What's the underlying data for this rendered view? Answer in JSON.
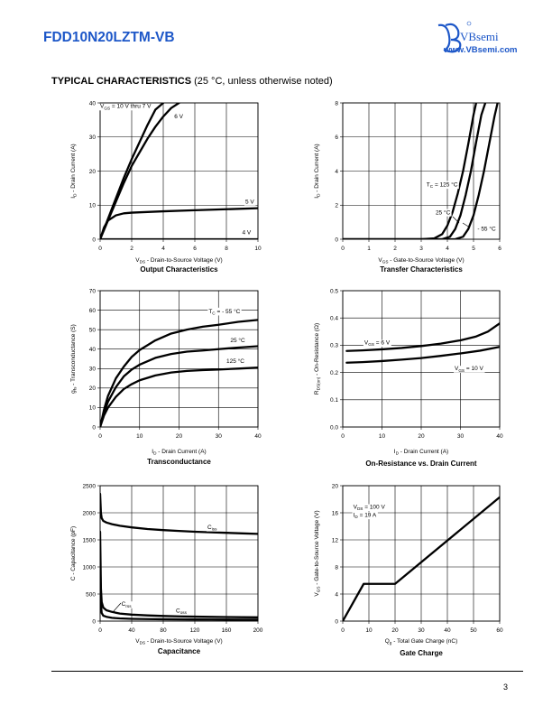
{
  "header": {
    "part_number": "FDD10N20LZTM-VB",
    "brand": "VBsemi",
    "website": "www.VBsemi.com"
  },
  "section": {
    "title": "TYPICAL CHARACTERISTICS",
    "note": "(25 °C, unless otherwise noted)"
  },
  "page_number": "3",
  "chart_data": [
    {
      "type": "line",
      "caption": "Output Characteristics",
      "xlabel": "V_DS - Drain-to-Source Voltage (V)",
      "ylabel": "I_D - Drain Current (A)",
      "xlim": [
        0,
        10
      ],
      "ylim": [
        0,
        40
      ],
      "xticks": [
        0,
        2,
        4,
        6,
        8,
        10
      ],
      "yticks": [
        0,
        10,
        20,
        30,
        40
      ],
      "grid": true,
      "annotations": [
        {
          "text": "V_GS = 10 V thru 7 V",
          "x": 0,
          "y": 38.5,
          "anchor": "start"
        },
        {
          "text": "6 V",
          "x": 4.7,
          "y": 35.5,
          "anchor": "start"
        },
        {
          "text": "5 V",
          "x": 9.2,
          "y": 10.5,
          "anchor": "start"
        },
        {
          "text": "4 V",
          "x": 9.0,
          "y": 1.5,
          "anchor": "start"
        }
      ],
      "series": [
        {
          "x": [
            0,
            0.5,
            1,
            1.5,
            2,
            2.5,
            3,
            3.5,
            4
          ],
          "y": [
            0,
            6,
            12,
            18,
            23.5,
            28.5,
            33.5,
            38,
            40
          ]
        },
        {
          "x": [
            0,
            0.5,
            1,
            1.5,
            2,
            2.5,
            3,
            3.5,
            4,
            4.5,
            5
          ],
          "y": [
            0,
            5.5,
            11,
            16.5,
            21.5,
            25.5,
            29.5,
            33,
            36,
            38.5,
            40
          ]
        },
        {
          "x": [
            0,
            0.25,
            0.5,
            1,
            1.5,
            2,
            3,
            4,
            6,
            8,
            10
          ],
          "y": [
            0,
            3.5,
            5.5,
            7.0,
            7.6,
            7.8,
            8.0,
            8.2,
            8.5,
            8.8,
            9.1
          ]
        },
        {
          "x": [
            0,
            2,
            4,
            6,
            8,
            10
          ],
          "y": [
            0,
            0,
            0,
            0,
            0,
            0
          ]
        }
      ]
    },
    {
      "type": "line",
      "caption": "Transfer Characteristics",
      "xlabel": "V_GS - Gate-to-Source Voltage (V)",
      "ylabel": "I_D - Drain Current (A)",
      "xlim": [
        0,
        6
      ],
      "ylim": [
        0,
        8
      ],
      "xticks": [
        0,
        1,
        2,
        3,
        4,
        5,
        6
      ],
      "yticks": [
        0,
        2,
        4,
        6,
        8
      ],
      "grid": true,
      "annotations": [
        {
          "text": "T_C = 125 °C",
          "x": 3.2,
          "y": 3.1,
          "anchor": "start"
        },
        {
          "text": "25 °C",
          "x": 3.55,
          "y": 1.45,
          "anchor": "start"
        },
        {
          "text": "- 55 °C",
          "x": 5.15,
          "y": 0.5,
          "anchor": "start"
        }
      ],
      "series": [
        {
          "name": "125 °C",
          "x": [
            0,
            3,
            3.5,
            3.8,
            4.0,
            4.2,
            4.4,
            4.6,
            4.8,
            5.0,
            5.1
          ],
          "y": [
            0,
            0,
            0.05,
            0.3,
            0.8,
            1.6,
            2.7,
            4.0,
            5.6,
            7.3,
            8
          ]
        },
        {
          "name": "25 °C",
          "x": [
            0,
            3.8,
            4.1,
            4.3,
            4.5,
            4.7,
            4.9,
            5.1,
            5.3,
            5.45
          ],
          "y": [
            0,
            0,
            0.15,
            0.6,
            1.4,
            2.6,
            4.0,
            5.7,
            7.3,
            8
          ]
        },
        {
          "name": "- 55 °C",
          "x": [
            0,
            4.3,
            4.6,
            4.8,
            5.0,
            5.2,
            5.4,
            5.6,
            5.8,
            5.92
          ],
          "y": [
            0,
            0,
            0.15,
            0.6,
            1.4,
            2.6,
            4.0,
            5.6,
            7.2,
            8
          ]
        }
      ]
    },
    {
      "type": "line",
      "caption": "Transconductance",
      "xlabel": "I_D - Drain Current (A)",
      "ylabel": "g_fs - Transconductance (S)",
      "xlim": [
        0,
        40
      ],
      "ylim": [
        0,
        70
      ],
      "xticks": [
        0,
        10,
        20,
        30,
        40
      ],
      "yticks": [
        0,
        10,
        20,
        30,
        40,
        50,
        60,
        70
      ],
      "grid": true,
      "annotations": [
        {
          "text": "T_C = - 55 °C",
          "x": 27.5,
          "y": 58.5,
          "anchor": "start"
        },
        {
          "text": "25 °C",
          "x": 33,
          "y": 43.5,
          "anchor": "start"
        },
        {
          "text": "125 °C",
          "x": 32,
          "y": 33,
          "anchor": "start"
        }
      ],
      "series": [
        {
          "name": "- 55 °C",
          "x": [
            0,
            1,
            2,
            4,
            6,
            8,
            10,
            14,
            18,
            22,
            26,
            30,
            35,
            40
          ],
          "y": [
            0,
            9,
            16,
            25,
            31,
            36,
            39.5,
            44.5,
            48,
            50,
            51.5,
            52.5,
            54,
            55
          ]
        },
        {
          "name": "25 °C",
          "x": [
            0,
            1,
            2,
            4,
            6,
            8,
            10,
            14,
            18,
            22,
            26,
            30,
            35,
            40
          ],
          "y": [
            0,
            7.5,
            13,
            20.5,
            26,
            29.5,
            32,
            35.5,
            37.5,
            38.7,
            39.3,
            40,
            40.8,
            41.5
          ]
        },
        {
          "name": "125 °C",
          "x": [
            0,
            1,
            2,
            4,
            6,
            8,
            10,
            14,
            18,
            22,
            26,
            30,
            35,
            40
          ],
          "y": [
            0,
            6,
            10,
            15.5,
            19.5,
            22,
            24,
            26.5,
            28,
            28.8,
            29.2,
            29.5,
            30,
            30.5
          ]
        }
      ]
    },
    {
      "type": "line",
      "caption": "On-Resistance vs. Drain Current",
      "xlabel": "I_D - Drain Current (A)",
      "ylabel": "R_DS(on) - On-Resistance (Ω)",
      "xlim": [
        0,
        40
      ],
      "ylim": [
        0.0,
        0.5
      ],
      "xticks": [
        0,
        10,
        20,
        30,
        40
      ],
      "yticks": [
        "0.0",
        "0.1",
        "0.2",
        "0.3",
        "0.4",
        "0.5"
      ],
      "grid": true,
      "annotations": [
        {
          "text": "V_GS = 6 V",
          "x": 5.5,
          "y": 0.303,
          "anchor": "start"
        },
        {
          "text": "V_GS = 10 V",
          "x": 28.5,
          "y": 0.208,
          "anchor": "start"
        }
      ],
      "series": [
        {
          "name": "V_GS = 6 V",
          "x": [
            1,
            5,
            10,
            15,
            20,
            25,
            30,
            34,
            37,
            40
          ],
          "y": [
            0.279,
            0.281,
            0.285,
            0.29,
            0.297,
            0.306,
            0.318,
            0.332,
            0.35,
            0.38
          ]
        },
        {
          "name": "V_GS = 10 V",
          "x": [
            1,
            5,
            10,
            15,
            20,
            25,
            30,
            35,
            40
          ],
          "y": [
            0.236,
            0.238,
            0.242,
            0.247,
            0.253,
            0.261,
            0.27,
            0.28,
            0.294
          ]
        }
      ]
    },
    {
      "type": "line",
      "caption": "Capacitance",
      "xlabel": "V_DS - Drain-to-Source Voltage (V)",
      "ylabel": "C - Capacitance (pF)",
      "xlim": [
        0,
        200
      ],
      "ylim": [
        0,
        2500
      ],
      "xticks": [
        0,
        40,
        80,
        120,
        160,
        200
      ],
      "yticks": [
        0,
        500,
        1000,
        1500,
        2000,
        2500
      ],
      "grid": true,
      "annotations": [
        {
          "text": "C_iss",
          "x": 136,
          "y": 1700,
          "anchor": "start"
        },
        {
          "text": "C_rss",
          "x": 27,
          "y": 280,
          "anchor": "start"
        },
        {
          "text": "C_oss",
          "x": 96,
          "y": 160,
          "anchor": "start"
        }
      ],
      "series": [
        {
          "name": "C_iss",
          "x": [
            0,
            1,
            2,
            4,
            8,
            15,
            25,
            40,
            60,
            80,
            100,
            120,
            140,
            160,
            180,
            200
          ],
          "y": [
            2350,
            2000,
            1900,
            1850,
            1820,
            1790,
            1760,
            1730,
            1700,
            1680,
            1665,
            1650,
            1640,
            1630,
            1620,
            1610
          ]
        },
        {
          "name": "C_oss",
          "x": [
            0,
            1,
            2,
            4,
            8,
            15,
            25,
            40,
            60,
            80,
            100,
            120,
            140,
            160,
            180,
            200
          ],
          "y": [
            1650,
            600,
            350,
            250,
            200,
            170,
            140,
            120,
            105,
            95,
            88,
            82,
            78,
            75,
            72,
            70
          ]
        },
        {
          "name": "C_rss",
          "x": [
            0,
            1,
            2,
            4,
            8,
            15,
            25,
            40,
            60,
            80,
            100,
            120,
            140,
            160,
            180,
            200
          ],
          "y": [
            1200,
            300,
            150,
            100,
            80,
            60,
            50,
            42,
            37,
            34,
            32,
            30,
            29,
            28,
            27,
            26
          ]
        }
      ]
    },
    {
      "type": "line",
      "caption": "Gate Charge",
      "xlabel": "Q_g - Total Gate Charge (nC)",
      "ylabel": "V_GS - Gate-to-Source Voltage (V)",
      "xlim": [
        0,
        60
      ],
      "ylim": [
        0,
        20
      ],
      "xticks": [
        0,
        10,
        20,
        30,
        40,
        50,
        60
      ],
      "yticks": [
        0,
        4,
        8,
        12,
        16,
        20
      ],
      "grid": true,
      "annotations": [
        {
          "text": "V_DS = 100 V",
          "x": 4,
          "y": 16.6,
          "anchor": "start"
        },
        {
          "text": "I_D = 19 A",
          "x": 4,
          "y": 15.4,
          "anchor": "start"
        }
      ],
      "series": [
        {
          "x": [
            0,
            8,
            20,
            60
          ],
          "y": [
            0,
            5.5,
            5.5,
            18.3
          ]
        }
      ]
    }
  ]
}
